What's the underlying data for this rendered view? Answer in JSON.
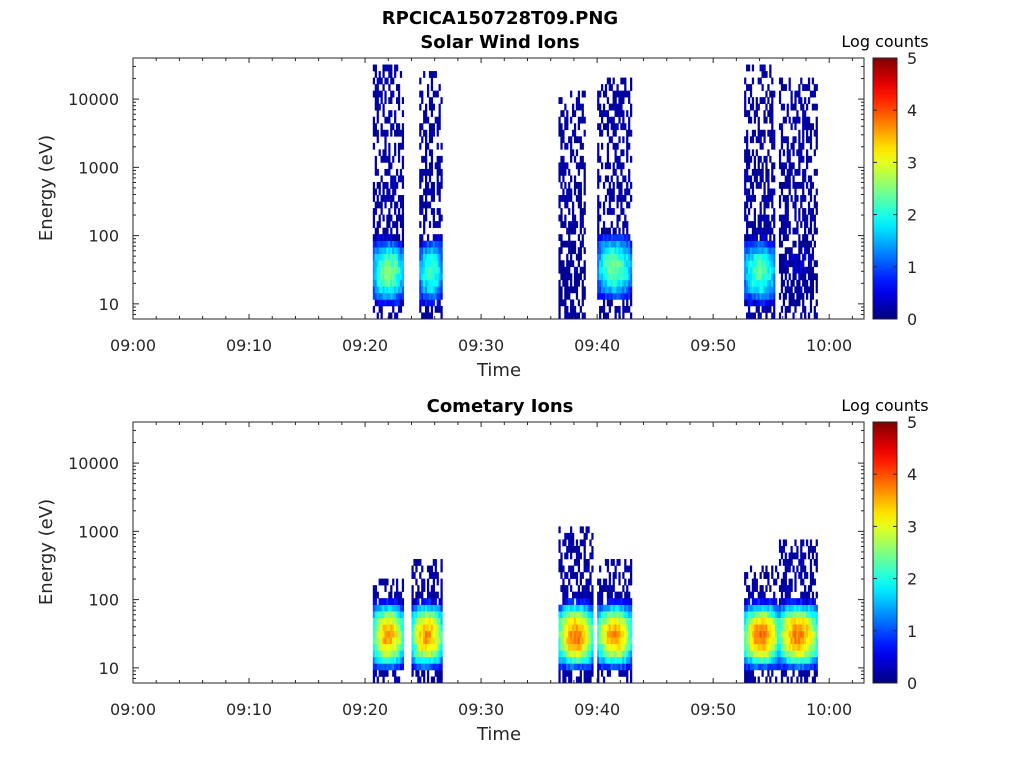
{
  "figure_title": "RPCICA150728T09.PNG",
  "chart_data": [
    {
      "type": "heatmap",
      "title": "Solar Wind Ions",
      "xlabel": "Time",
      "ylabel": "Energy (eV)",
      "x_ticks": [
        "09:00",
        "09:10",
        "09:20",
        "09:30",
        "09:40",
        "09:50",
        "10:00"
      ],
      "xlim": [
        "09:00",
        "10:03"
      ],
      "y_ticks": [
        "10",
        "100",
        "1000",
        "10000"
      ],
      "ylim": [
        6,
        40000
      ],
      "yscale": "log",
      "grid": false,
      "colorbar": {
        "label": "Log counts",
        "ticks": [
          "0",
          "1",
          "2",
          "3",
          "4",
          "5"
        ],
        "range": [
          0,
          5
        ],
        "colormap": "jet"
      },
      "bursts": [
        {
          "start": "09:20:40",
          "end": "09:23:20",
          "peak_energy_eV": 30,
          "peak_log_counts": 2.5,
          "max_energy_eV": 30000
        },
        {
          "start": "09:24:40",
          "end": "09:26:40",
          "peak_energy_eV": 30,
          "peak_log_counts": 2.2,
          "max_energy_eV": 25000
        },
        {
          "start": "09:36:40",
          "end": "09:39:00",
          "peak_energy_eV": 30,
          "peak_log_counts": 0.3,
          "max_energy_eV": 14000
        },
        {
          "start": "09:40:00",
          "end": "09:43:00",
          "peak_energy_eV": 35,
          "peak_log_counts": 2.4,
          "max_energy_eV": 20000
        },
        {
          "start": "09:52:40",
          "end": "09:55:20",
          "peak_energy_eV": 30,
          "peak_log_counts": 2.3,
          "max_energy_eV": 30000
        },
        {
          "start": "09:55:40",
          "end": "09:59:00",
          "peak_energy_eV": 30,
          "peak_log_counts": 0.4,
          "max_energy_eV": 20000
        }
      ]
    },
    {
      "type": "heatmap",
      "title": "Cometary Ions",
      "xlabel": "Time",
      "ylabel": "Energy (eV)",
      "x_ticks": [
        "09:00",
        "09:10",
        "09:20",
        "09:30",
        "09:40",
        "09:50",
        "10:00"
      ],
      "xlim": [
        "09:00",
        "10:03"
      ],
      "y_ticks": [
        "10",
        "100",
        "1000",
        "10000"
      ],
      "ylim": [
        6,
        40000
      ],
      "yscale": "log",
      "grid": false,
      "colorbar": {
        "label": "Log counts",
        "ticks": [
          "0",
          "1",
          "2",
          "3",
          "4",
          "5"
        ],
        "range": [
          0,
          5
        ],
        "colormap": "jet"
      },
      "bursts": [
        {
          "start": "09:20:40",
          "end": "09:23:20",
          "peak_energy_eV": 30,
          "peak_log_counts": 3.6,
          "max_energy_eV": 200
        },
        {
          "start": "09:24:00",
          "end": "09:26:40",
          "peak_energy_eV": 30,
          "peak_log_counts": 3.6,
          "max_energy_eV": 400
        },
        {
          "start": "09:36:40",
          "end": "09:39:40",
          "peak_energy_eV": 30,
          "peak_log_counts": 3.8,
          "max_energy_eV": 1200
        },
        {
          "start": "09:40:00",
          "end": "09:43:00",
          "peak_energy_eV": 30,
          "peak_log_counts": 3.6,
          "max_energy_eV": 400
        },
        {
          "start": "09:52:40",
          "end": "09:55:40",
          "peak_energy_eV": 30,
          "peak_log_counts": 3.8,
          "max_energy_eV": 300
        },
        {
          "start": "09:55:40",
          "end": "09:59:00",
          "peak_energy_eV": 30,
          "peak_log_counts": 3.8,
          "max_energy_eV": 800
        }
      ]
    }
  ]
}
